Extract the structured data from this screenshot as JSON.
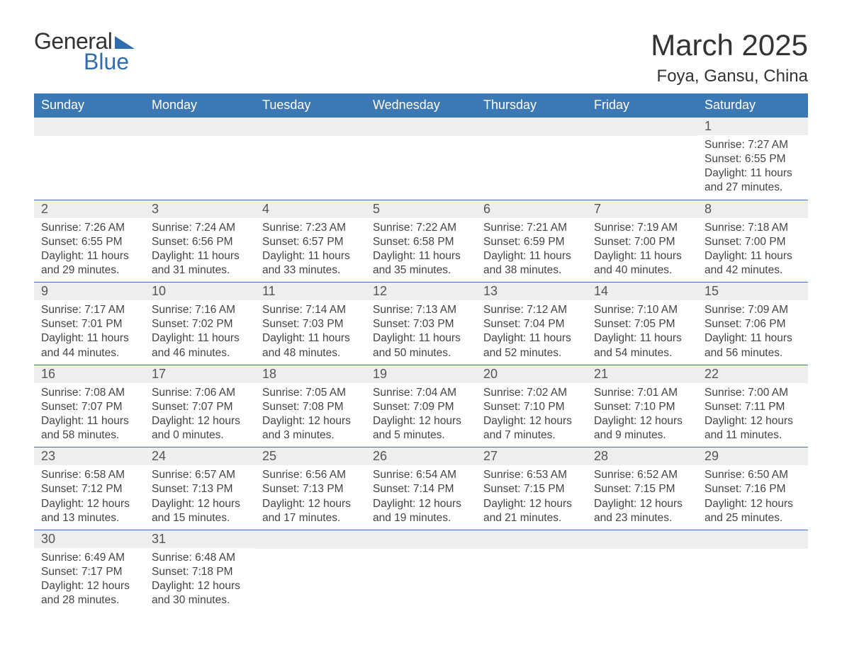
{
  "brand": {
    "part1": "General",
    "part2": "Blue"
  },
  "title": "March 2025",
  "location": "Foya, Gansu, China",
  "colors": {
    "header_bg": "#3c78b4",
    "header_text": "#ffffff",
    "daynum_bg": "#eeeeee",
    "border": "#3c78b4",
    "text": "#444444",
    "brand_blue": "#2f6eae",
    "background": "#ffffff"
  },
  "weekdays": [
    "Sunday",
    "Monday",
    "Tuesday",
    "Wednesday",
    "Thursday",
    "Friday",
    "Saturday"
  ],
  "weeks": [
    [
      null,
      null,
      null,
      null,
      null,
      null,
      {
        "n": "1",
        "sr": "7:27 AM",
        "ss": "6:55 PM",
        "dh": "11",
        "dm": "27"
      }
    ],
    [
      {
        "n": "2",
        "sr": "7:26 AM",
        "ss": "6:55 PM",
        "dh": "11",
        "dm": "29"
      },
      {
        "n": "3",
        "sr": "7:24 AM",
        "ss": "6:56 PM",
        "dh": "11",
        "dm": "31"
      },
      {
        "n": "4",
        "sr": "7:23 AM",
        "ss": "6:57 PM",
        "dh": "11",
        "dm": "33"
      },
      {
        "n": "5",
        "sr": "7:22 AM",
        "ss": "6:58 PM",
        "dh": "11",
        "dm": "35"
      },
      {
        "n": "6",
        "sr": "7:21 AM",
        "ss": "6:59 PM",
        "dh": "11",
        "dm": "38"
      },
      {
        "n": "7",
        "sr": "7:19 AM",
        "ss": "7:00 PM",
        "dh": "11",
        "dm": "40"
      },
      {
        "n": "8",
        "sr": "7:18 AM",
        "ss": "7:00 PM",
        "dh": "11",
        "dm": "42"
      }
    ],
    [
      {
        "n": "9",
        "sr": "7:17 AM",
        "ss": "7:01 PM",
        "dh": "11",
        "dm": "44"
      },
      {
        "n": "10",
        "sr": "7:16 AM",
        "ss": "7:02 PM",
        "dh": "11",
        "dm": "46"
      },
      {
        "n": "11",
        "sr": "7:14 AM",
        "ss": "7:03 PM",
        "dh": "11",
        "dm": "48"
      },
      {
        "n": "12",
        "sr": "7:13 AM",
        "ss": "7:03 PM",
        "dh": "11",
        "dm": "50"
      },
      {
        "n": "13",
        "sr": "7:12 AM",
        "ss": "7:04 PM",
        "dh": "11",
        "dm": "52"
      },
      {
        "n": "14",
        "sr": "7:10 AM",
        "ss": "7:05 PM",
        "dh": "11",
        "dm": "54"
      },
      {
        "n": "15",
        "sr": "7:09 AM",
        "ss": "7:06 PM",
        "dh": "11",
        "dm": "56"
      }
    ],
    [
      {
        "n": "16",
        "sr": "7:08 AM",
        "ss": "7:07 PM",
        "dh": "11",
        "dm": "58"
      },
      {
        "n": "17",
        "sr": "7:06 AM",
        "ss": "7:07 PM",
        "dh": "12",
        "dm": "0"
      },
      {
        "n": "18",
        "sr": "7:05 AM",
        "ss": "7:08 PM",
        "dh": "12",
        "dm": "3"
      },
      {
        "n": "19",
        "sr": "7:04 AM",
        "ss": "7:09 PM",
        "dh": "12",
        "dm": "5"
      },
      {
        "n": "20",
        "sr": "7:02 AM",
        "ss": "7:10 PM",
        "dh": "12",
        "dm": "7"
      },
      {
        "n": "21",
        "sr": "7:01 AM",
        "ss": "7:10 PM",
        "dh": "12",
        "dm": "9"
      },
      {
        "n": "22",
        "sr": "7:00 AM",
        "ss": "7:11 PM",
        "dh": "12",
        "dm": "11"
      }
    ],
    [
      {
        "n": "23",
        "sr": "6:58 AM",
        "ss": "7:12 PM",
        "dh": "12",
        "dm": "13"
      },
      {
        "n": "24",
        "sr": "6:57 AM",
        "ss": "7:13 PM",
        "dh": "12",
        "dm": "15"
      },
      {
        "n": "25",
        "sr": "6:56 AM",
        "ss": "7:13 PM",
        "dh": "12",
        "dm": "17"
      },
      {
        "n": "26",
        "sr": "6:54 AM",
        "ss": "7:14 PM",
        "dh": "12",
        "dm": "19"
      },
      {
        "n": "27",
        "sr": "6:53 AM",
        "ss": "7:15 PM",
        "dh": "12",
        "dm": "21"
      },
      {
        "n": "28",
        "sr": "6:52 AM",
        "ss": "7:15 PM",
        "dh": "12",
        "dm": "23"
      },
      {
        "n": "29",
        "sr": "6:50 AM",
        "ss": "7:16 PM",
        "dh": "12",
        "dm": "25"
      }
    ],
    [
      {
        "n": "30",
        "sr": "6:49 AM",
        "ss": "7:17 PM",
        "dh": "12",
        "dm": "28"
      },
      {
        "n": "31",
        "sr": "6:48 AM",
        "ss": "7:18 PM",
        "dh": "12",
        "dm": "30"
      },
      null,
      null,
      null,
      null,
      null
    ]
  ],
  "labels": {
    "sunrise": "Sunrise: ",
    "sunset": "Sunset: ",
    "daylight1": "Daylight: ",
    "daylight2": " hours and ",
    "daylight3": " minutes."
  }
}
